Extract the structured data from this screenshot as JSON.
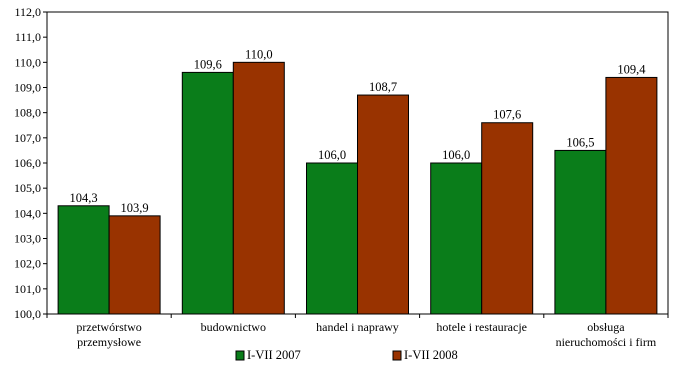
{
  "chart_data": {
    "type": "bar",
    "categories": [
      [
        "przetwórstwo",
        "przemysłowe"
      ],
      [
        "budownictwo"
      ],
      [
        "handel i naprawy"
      ],
      [
        "hotele i restauracje"
      ],
      [
        "obsługa",
        "nieruchomości i firm"
      ]
    ],
    "series": [
      {
        "name": "I-VII 2007",
        "color": "#0a7d1a",
        "values": [
          104.3,
          109.6,
          106.0,
          106.0,
          106.5
        ],
        "labels": [
          "104,3",
          "109,6",
          "106,0",
          "106,0",
          "106,5"
        ]
      },
      {
        "name": "I-VII 2008",
        "color": "#993300",
        "values": [
          103.9,
          110.0,
          108.7,
          107.6,
          109.4
        ],
        "labels": [
          "103,9",
          "110,0",
          "108,7",
          "107,6",
          "109,4"
        ]
      }
    ],
    "ylim": [
      100.0,
      112.0
    ],
    "yticks": [
      "100,0",
      "101,0",
      "102,0",
      "103,0",
      "104,0",
      "105,0",
      "106,0",
      "107,0",
      "108,0",
      "109,0",
      "110,0",
      "111,0",
      "112,0"
    ],
    "title": "",
    "xlabel": "",
    "ylabel": "",
    "grid": false,
    "legend": "bottom"
  }
}
